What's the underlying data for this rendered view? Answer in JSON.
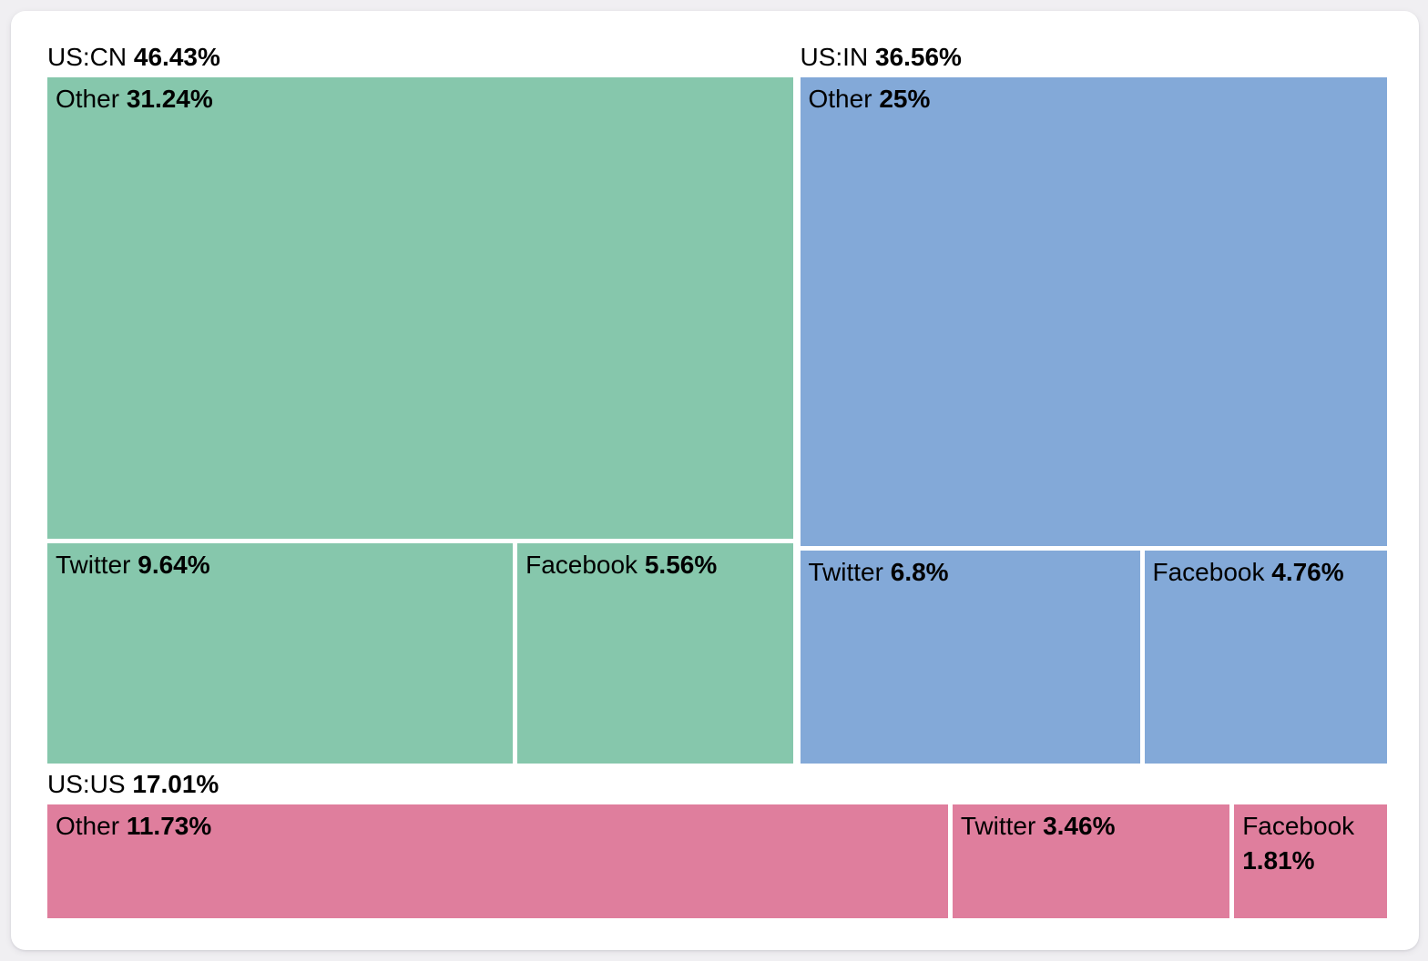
{
  "page": {
    "background_color": "#f0eff2",
    "card_color": "#ffffff",
    "text_color": "#000000"
  },
  "chart_data": {
    "type": "treemap",
    "title": "",
    "legend": "none",
    "units": "percent",
    "groups": [
      {
        "label": "US:CN",
        "pct": "46.43%",
        "value": 46.43,
        "color": "#86c7ac",
        "children": [
          {
            "label": "Other",
            "pct": "31.24%",
            "value": 31.24
          },
          {
            "label": "Twitter",
            "pct": "9.64%",
            "value": 9.64
          },
          {
            "label": "Facebook",
            "pct": "5.56%",
            "value": 5.56
          }
        ]
      },
      {
        "label": "US:IN",
        "pct": "36.56%",
        "value": 36.56,
        "color": "#83a9d8",
        "children": [
          {
            "label": "Other",
            "pct": "25%",
            "value": 25
          },
          {
            "label": "Twitter",
            "pct": "6.8%",
            "value": 6.8
          },
          {
            "label": "Facebook",
            "pct": "4.76%",
            "value": 4.76
          }
        ]
      },
      {
        "label": "US:US",
        "pct": "17.01%",
        "value": 17.01,
        "color": "#df7e9d",
        "children": [
          {
            "label": "Other",
            "pct": "11.73%",
            "value": 11.73
          },
          {
            "label": "Twitter",
            "pct": "3.46%",
            "value": 3.46
          },
          {
            "label": "Facebook",
            "pct": "1.81%",
            "value": 1.81
          }
        ]
      }
    ]
  }
}
